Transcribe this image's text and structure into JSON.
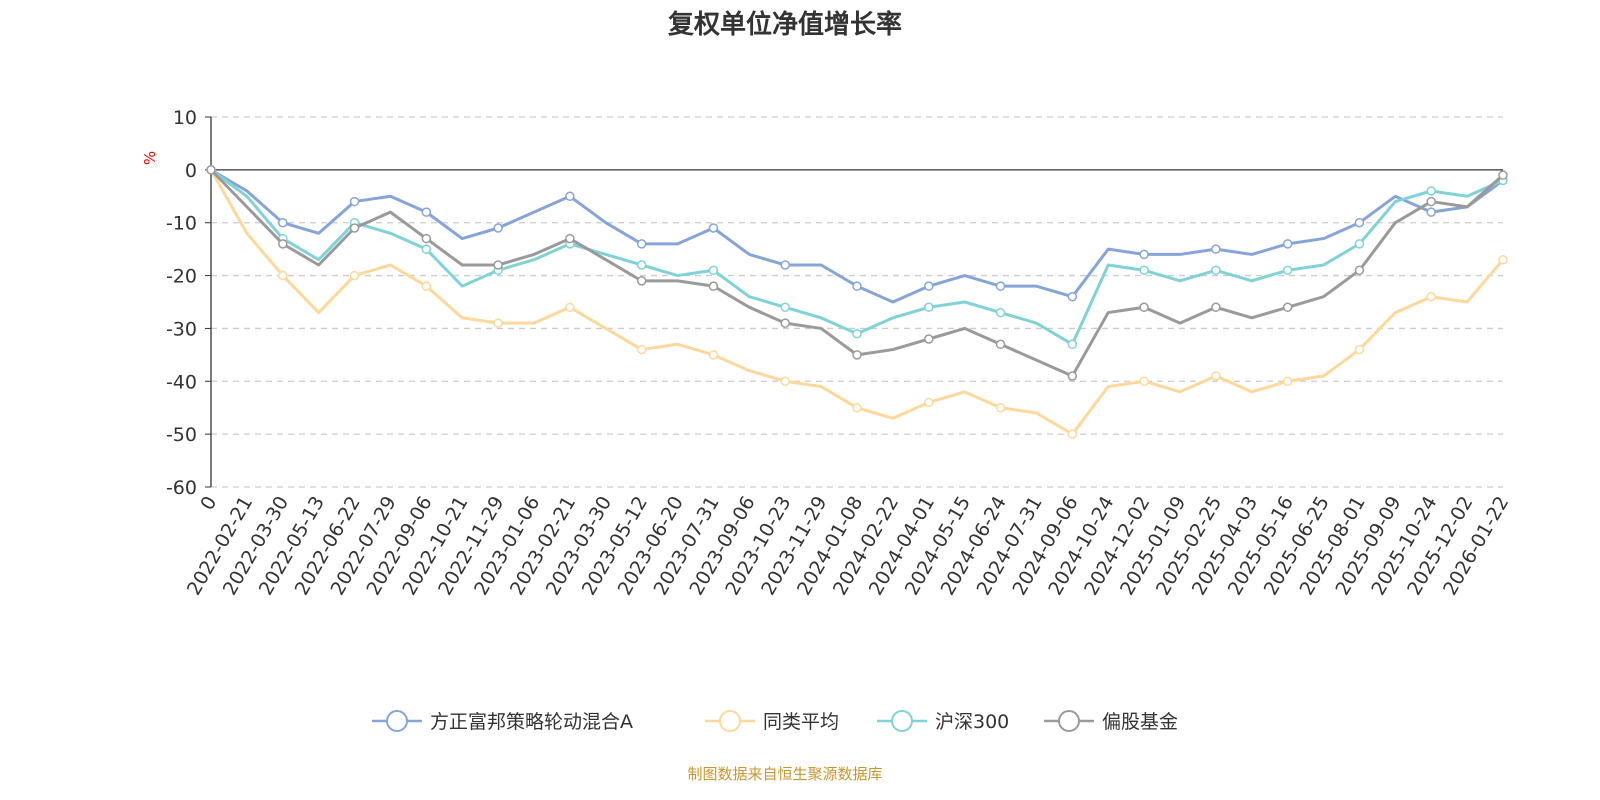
{
  "chart_data": {
    "type": "line",
    "title": "复权单位净值增长率",
    "ylabel": "%",
    "xlabel": "",
    "ylim": [
      -60,
      10
    ],
    "yticks": [
      10,
      0,
      -10,
      -20,
      -30,
      -40,
      -50,
      -60
    ],
    "grid": true,
    "legend_position": "bottom",
    "categories": [
      "0",
      "2022-02-21",
      "2022-03-30",
      "2022-05-13",
      "2022-06-22",
      "2022-07-29",
      "2022-09-06",
      "2022-10-21",
      "2022-11-29",
      "2023-01-06",
      "2023-02-21",
      "2023-03-30",
      "2023-05-12",
      "2023-06-20",
      "2023-07-31",
      "2023-09-06",
      "2023-10-23",
      "2023-11-29",
      "2024-01-08",
      "2024-02-22",
      "2024-04-01",
      "2024-05-15",
      "2024-06-24",
      "2024-07-31",
      "2024-09-06",
      "2024-10-24",
      "2024-12-02",
      "2025-01-09",
      "2025-02-25",
      "2025-04-03",
      "2025-05-16",
      "2025-06-25",
      "2025-08-01",
      "2025-09-09",
      "2025-10-24",
      "2025-12-02",
      "2026-01-22"
    ],
    "series": [
      {
        "name": "方正富邦策略轮动混合A",
        "color": "#86a4d9",
        "values": [
          0,
          -4,
          -10,
          -12,
          -6,
          -5,
          -8,
          -13,
          -11,
          -8,
          -5,
          -10,
          -14,
          -14,
          -11,
          -16,
          -18,
          -18,
          -22,
          -25,
          -22,
          -20,
          -22,
          -22,
          -24,
          -15,
          -16,
          -16,
          -15,
          -16,
          -14,
          -13,
          -10,
          -5,
          -8,
          -7,
          -2
        ]
      },
      {
        "name": "同类平均",
        "color": "#fdd89a",
        "values": [
          0,
          -12,
          -20,
          -27,
          -20,
          -18,
          -22,
          -28,
          -29,
          -29,
          -26,
          -30,
          -34,
          -33,
          -35,
          -38,
          -40,
          -41,
          -45,
          -47,
          -44,
          -42,
          -45,
          -46,
          -50,
          -41,
          -40,
          -42,
          -39,
          -42,
          -40,
          -39,
          -34,
          -27,
          -24,
          -25,
          -17
        ]
      },
      {
        "name": "沪深300",
        "color": "#7fd3d6",
        "values": [
          0,
          -5,
          -13,
          -17,
          -10,
          -12,
          -15,
          -22,
          -19,
          -17,
          -14,
          -16,
          -18,
          -20,
          -19,
          -24,
          -26,
          -28,
          -31,
          -28,
          -26,
          -25,
          -27,
          -29,
          -33,
          -18,
          -19,
          -21,
          -19,
          -21,
          -19,
          -18,
          -14,
          -6,
          -4,
          -5,
          -2
        ]
      },
      {
        "name": "偏股基金",
        "color": "#9a9a9a",
        "values": [
          0,
          -7,
          -14,
          -18,
          -11,
          -8,
          -13,
          -18,
          -18,
          -16,
          -13,
          -17,
          -21,
          -21,
          -22,
          -26,
          -29,
          -30,
          -35,
          -34,
          -32,
          -30,
          -33,
          -36,
          -39,
          -27,
          -26,
          -29,
          -26,
          -28,
          -26,
          -24,
          -19,
          -10,
          -6,
          -7,
          -1
        ]
      }
    ]
  },
  "footer": "制图数据来自恒生聚源数据库"
}
